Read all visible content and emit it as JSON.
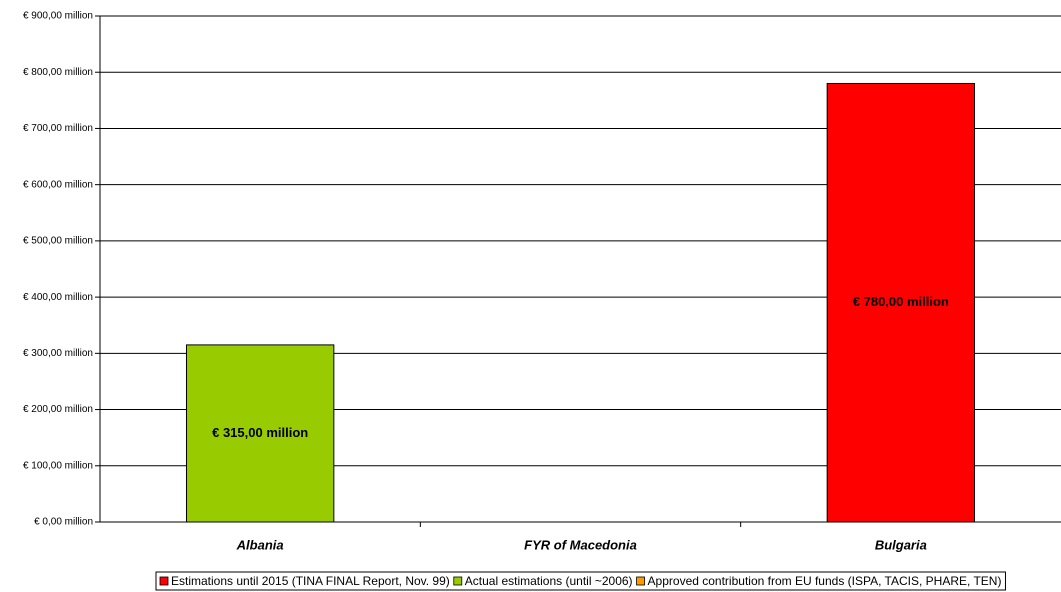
{
  "chart_data": {
    "type": "bar",
    "categories": [
      "Albania",
      "FYR of Macedonia",
      "Bulgaria"
    ],
    "series": [
      {
        "name": "Estimations until 2015 (TINA FINAL Report, Nov. 99)",
        "color": "#ff0000",
        "values": [
          null,
          null,
          780
        ],
        "value_labels": [
          null,
          null,
          "€ 780,00 million"
        ]
      },
      {
        "name": "Actual estimations (until ~2006)",
        "color": "#99cc00",
        "values": [
          315,
          null,
          null
        ],
        "value_labels": [
          "€ 315,00 million",
          null,
          null
        ]
      },
      {
        "name": "Approved contribution from EU funds (ISPA, TACIS, PHARE, TEN)",
        "color": "#ff9900",
        "values": [
          null,
          null,
          null
        ]
      }
    ],
    "ylim": [
      0,
      900
    ],
    "yticks": [
      {
        "value": 0,
        "label": "€ 0,00 million"
      },
      {
        "value": 100,
        "label": "€ 100,00 million"
      },
      {
        "value": 200,
        "label": "€ 200,00 million"
      },
      {
        "value": 300,
        "label": "€ 300,00 million"
      },
      {
        "value": 400,
        "label": "€ 400,00 million"
      },
      {
        "value": 500,
        "label": "€ 500,00 million"
      },
      {
        "value": 600,
        "label": "€ 600,00 million"
      },
      {
        "value": 700,
        "label": "€ 700,00 million"
      },
      {
        "value": 800,
        "label": "€ 800,00 million"
      },
      {
        "value": 900,
        "label": "€ 900,00 million"
      }
    ],
    "grid": true,
    "legend": "bottom"
  }
}
